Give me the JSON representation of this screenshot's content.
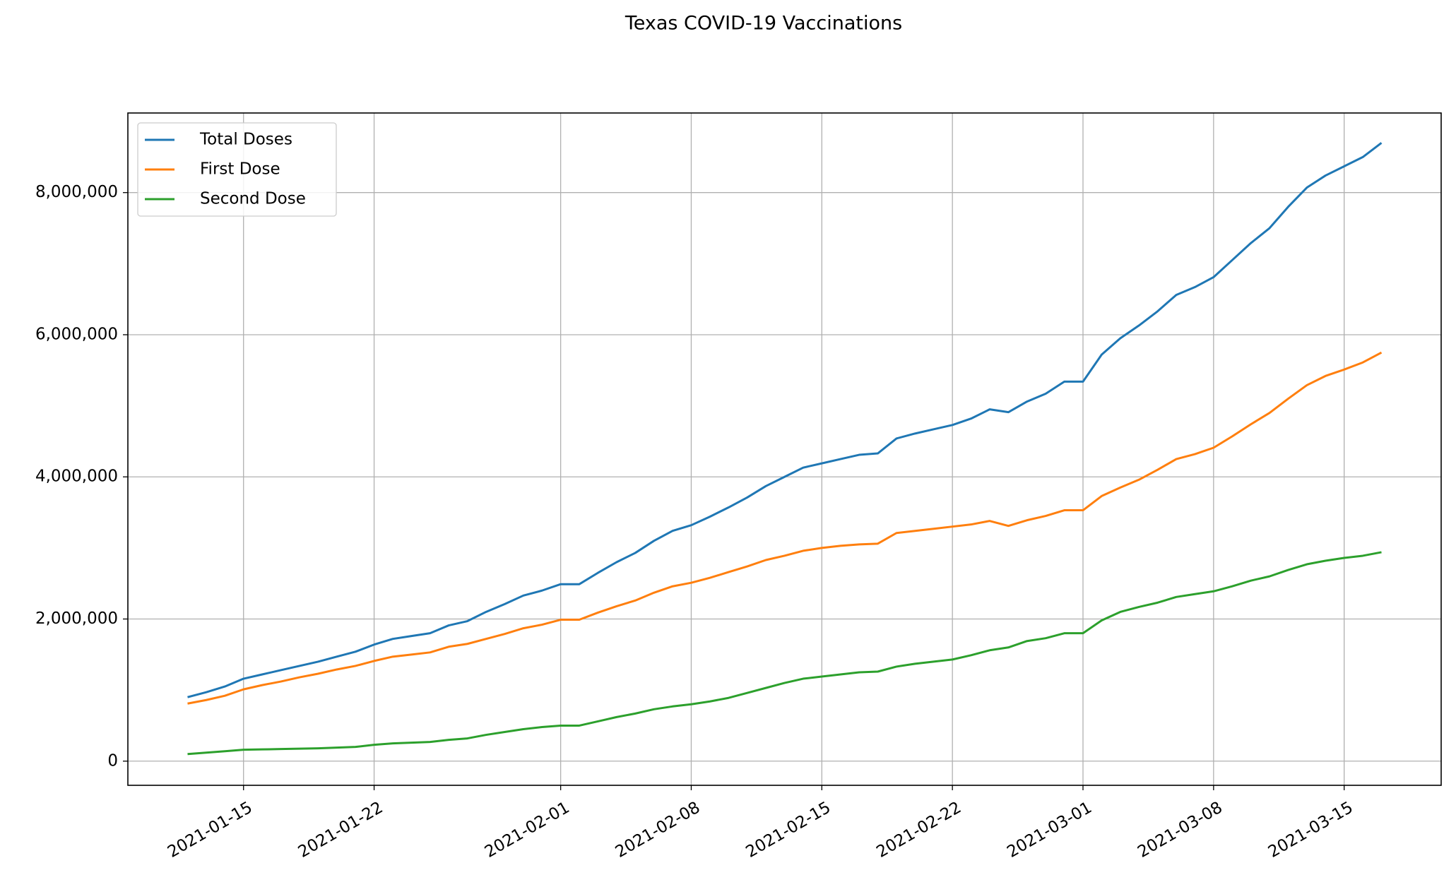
{
  "chart_data": {
    "type": "line",
    "title": "Texas COVID-19 Vaccinations",
    "x": [
      "2021-01-12",
      "2021-01-13",
      "2021-01-14",
      "2021-01-15",
      "2021-01-16",
      "2021-01-17",
      "2021-01-18",
      "2021-01-19",
      "2021-01-20",
      "2021-01-21",
      "2021-01-22",
      "2021-01-23",
      "2021-01-24",
      "2021-01-25",
      "2021-01-26",
      "2021-01-27",
      "2021-01-28",
      "2021-01-29",
      "2021-01-30",
      "2021-01-31",
      "2021-02-01",
      "2021-02-02",
      "2021-02-03",
      "2021-02-04",
      "2021-02-05",
      "2021-02-06",
      "2021-02-07",
      "2021-02-08",
      "2021-02-09",
      "2021-02-10",
      "2021-02-11",
      "2021-02-12",
      "2021-02-13",
      "2021-02-14",
      "2021-02-15",
      "2021-02-16",
      "2021-02-17",
      "2021-02-18",
      "2021-02-19",
      "2021-02-20",
      "2021-02-21",
      "2021-02-22",
      "2021-02-23",
      "2021-02-24",
      "2021-02-25",
      "2021-02-26",
      "2021-02-27",
      "2021-02-28",
      "2021-03-01",
      "2021-03-02",
      "2021-03-03",
      "2021-03-04",
      "2021-03-05",
      "2021-03-06",
      "2021-03-07",
      "2021-03-08",
      "2021-03-09",
      "2021-03-10",
      "2021-03-11",
      "2021-03-12",
      "2021-03-13",
      "2021-03-14",
      "2021-03-15",
      "2021-03-16",
      "2021-03-17"
    ],
    "series": [
      {
        "name": "Total Doses",
        "color": "#1f77b4",
        "values": [
          900000,
          970000,
          1050000,
          1160000,
          1220000,
          1280000,
          1340000,
          1400000,
          1470000,
          1540000,
          1640000,
          1720000,
          1760000,
          1800000,
          1910000,
          1970000,
          2100000,
          2210000,
          2330000,
          2400000,
          2490000,
          2490000,
          2650000,
          2800000,
          2930000,
          3100000,
          3240000,
          3320000,
          3440000,
          3570000,
          3710000,
          3870000,
          4000000,
          4130000,
          4190000,
          4250000,
          4310000,
          4330000,
          4540000,
          4610000,
          4670000,
          4730000,
          4820000,
          4950000,
          4910000,
          5060000,
          5170000,
          5340000,
          5340000,
          5720000,
          5950000,
          6130000,
          6330000,
          6560000,
          6670000,
          6810000,
          7050000,
          7290000,
          7500000,
          7800000,
          8070000,
          8240000,
          8370000,
          8500000,
          8700000
        ]
      },
      {
        "name": "First Dose",
        "color": "#ff7f0e",
        "values": [
          810000,
          860000,
          920000,
          1010000,
          1070000,
          1120000,
          1180000,
          1230000,
          1290000,
          1340000,
          1410000,
          1470000,
          1500000,
          1530000,
          1610000,
          1650000,
          1720000,
          1790000,
          1870000,
          1920000,
          1990000,
          1990000,
          2090000,
          2180000,
          2260000,
          2370000,
          2460000,
          2510000,
          2580000,
          2660000,
          2740000,
          2830000,
          2890000,
          2960000,
          3000000,
          3030000,
          3050000,
          3060000,
          3210000,
          3240000,
          3270000,
          3300000,
          3330000,
          3380000,
          3310000,
          3390000,
          3450000,
          3530000,
          3530000,
          3730000,
          3850000,
          3960000,
          4100000,
          4250000,
          4320000,
          4410000,
          4570000,
          4740000,
          4900000,
          5100000,
          5290000,
          5420000,
          5510000,
          5610000,
          5750000
        ]
      },
      {
        "name": "Second Dose",
        "color": "#2ca02c",
        "values": [
          100000,
          120000,
          140000,
          160000,
          165000,
          170000,
          175000,
          180000,
          190000,
          200000,
          230000,
          250000,
          260000,
          270000,
          300000,
          320000,
          370000,
          410000,
          450000,
          480000,
          500000,
          500000,
          560000,
          620000,
          670000,
          730000,
          770000,
          800000,
          840000,
          890000,
          960000,
          1030000,
          1100000,
          1160000,
          1190000,
          1220000,
          1250000,
          1260000,
          1330000,
          1370000,
          1400000,
          1430000,
          1490000,
          1560000,
          1600000,
          1690000,
          1730000,
          1800000,
          1800000,
          1980000,
          2100000,
          2170000,
          2230000,
          2310000,
          2350000,
          2390000,
          2460000,
          2540000,
          2600000,
          2690000,
          2770000,
          2820000,
          2860000,
          2890000,
          2940000
        ]
      }
    ],
    "xlim": [
      "2021-01-08T19:12:00Z",
      "2021-03-20T04:48:00Z"
    ],
    "xticks": [
      "2021-01-15",
      "2021-01-22",
      "2021-02-01",
      "2021-02-08",
      "2021-02-15",
      "2021-02-22",
      "2021-03-01",
      "2021-03-08",
      "2021-03-15"
    ],
    "ylim": [
      -340000,
      9120000
    ],
    "yticks": [
      0,
      {
        "value": 2000000,
        "label": "2,000,000"
      },
      {
        "value": 4000000,
        "label": "4,000,000"
      },
      {
        "value": 6000000,
        "label": "6,000,000"
      },
      {
        "value": 8000000,
        "label": "8,000,000"
      }
    ],
    "grid": true,
    "legend": "upper left"
  }
}
